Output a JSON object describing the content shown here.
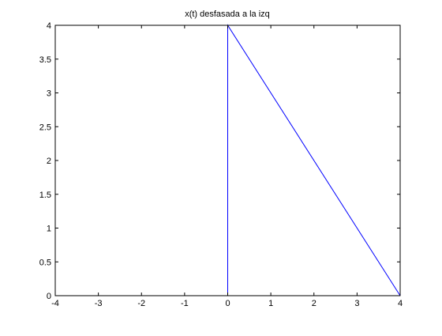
{
  "chart_data": {
    "type": "line",
    "title": "x(t) desfasada a la izq",
    "xlabel": "",
    "ylabel": "",
    "xlim": [
      -4,
      4
    ],
    "ylim": [
      0,
      4
    ],
    "xticks": [
      -4,
      -3,
      -2,
      -1,
      0,
      1,
      2,
      3,
      4
    ],
    "yticks": [
      0,
      0.5,
      1,
      1.5,
      2,
      2.5,
      3,
      3.5,
      4
    ],
    "xtick_labels": [
      "-4",
      "-3",
      "-2",
      "-1",
      "0",
      "1",
      "2",
      "3",
      "4"
    ],
    "ytick_labels": [
      "0",
      "0.5",
      "1",
      "1.5",
      "2",
      "2.5",
      "3",
      "3.5",
      "4"
    ],
    "grid": false,
    "series": [
      {
        "x": [
          0,
          0,
          4
        ],
        "y": [
          0,
          4,
          0
        ],
        "color": "#0000ff"
      }
    ]
  }
}
